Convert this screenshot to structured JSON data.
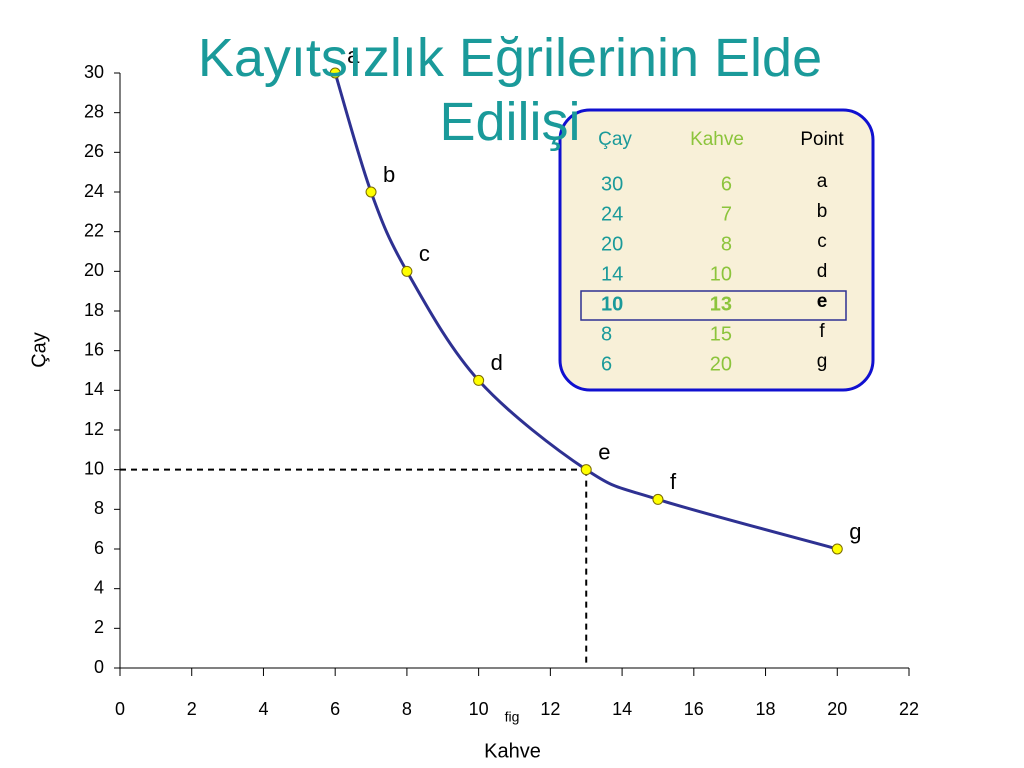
{
  "title": "Kayıtsızlık Eğrilerinin Elde Edilişi",
  "chart_data": {
    "type": "line",
    "x": [
      6,
      7,
      8,
      10,
      13,
      15,
      20
    ],
    "values": [
      30,
      24,
      20,
      14.5,
      10,
      8.5,
      6
    ],
    "point_labels": [
      "a",
      "b",
      "c",
      "d",
      "e",
      "f",
      "g"
    ],
    "color": "#2e3192",
    "marker_color": "#ffff00",
    "xlim": [
      0,
      22
    ],
    "xticks": [
      0,
      2,
      4,
      6,
      8,
      10,
      12,
      14,
      16,
      18,
      20,
      22
    ],
    "ylim": [
      0,
      30
    ],
    "yticks": [
      0,
      2,
      4,
      6,
      8,
      10,
      12,
      14,
      16,
      18,
      20,
      22,
      24,
      26,
      28,
      30
    ],
    "xlabel": "Kahve",
    "xlabel_note": "fig",
    "ylabel": "Çay",
    "guide_point": 4
  },
  "table": {
    "columns": [
      "Çay",
      "Kahve",
      "Point"
    ],
    "rows": [
      [
        30,
        6,
        "a"
      ],
      [
        24,
        7,
        "b"
      ],
      [
        20,
        8,
        "c"
      ],
      [
        14,
        10,
        "d"
      ],
      [
        10,
        13,
        "e"
      ],
      [
        8,
        15,
        "f"
      ],
      [
        6,
        20,
        "g"
      ]
    ],
    "highlight_row": 4
  }
}
